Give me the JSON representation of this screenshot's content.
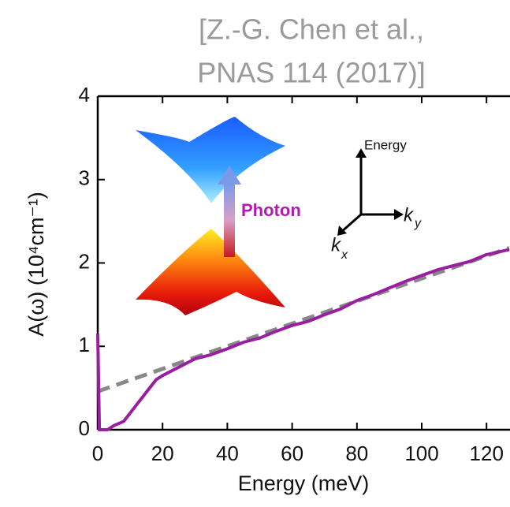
{
  "chart_data": {
    "type": "line",
    "title": "[Z.-G. Chen et al.,",
    "subtitle": "PNAS 114 (2017)]",
    "x_label": "Energy (meV)",
    "y_label": "A(ω) (10⁴cm⁻¹)",
    "xlim": [
      0,
      127
    ],
    "ylim": [
      0,
      4
    ],
    "xticks": [
      0,
      20,
      40,
      60,
      80,
      100,
      120
    ],
    "yticks": [
      0,
      1,
      2,
      3,
      4
    ],
    "series": [
      {
        "color": "#9a1fa0",
        "style": "solid",
        "x": [
          0,
          0.5,
          3,
          5,
          8,
          10,
          12,
          15,
          18,
          20,
          25,
          30,
          35,
          40,
          45,
          50,
          55,
          60,
          65,
          70,
          75,
          80,
          85,
          90,
          95,
          100,
          105,
          110,
          115,
          120,
          127
        ],
        "values": [
          1.15,
          0,
          0,
          0.05,
          0.1,
          0.2,
          0.3,
          0.45,
          0.6,
          0.65,
          0.75,
          0.85,
          0.9,
          0.97,
          1.05,
          1.1,
          1.18,
          1.25,
          1.3,
          1.38,
          1.45,
          1.55,
          1.62,
          1.7,
          1.78,
          1.85,
          1.92,
          1.97,
          2.02,
          2.1,
          2.16
        ]
      },
      {
        "color": "#888888",
        "style": "dashed",
        "x": [
          0,
          127
        ],
        "values": [
          0.46,
          2.18
        ]
      }
    ],
    "inset": {
      "photon": "Photon",
      "energy": "Energy",
      "ky": [
        "k",
        "y"
      ],
      "kx": [
        "k",
        "x"
      ]
    }
  }
}
